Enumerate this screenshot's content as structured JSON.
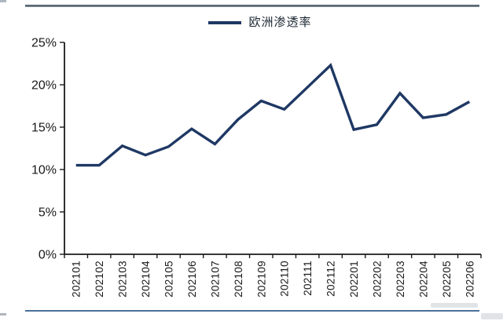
{
  "legend": {
    "label": "欧洲渗透率",
    "line_color": "#1f3864"
  },
  "chart_data": {
    "type": "line",
    "title": "",
    "xlabel": "",
    "ylabel": "",
    "categories": [
      "202101",
      "202102",
      "202103",
      "202104",
      "202105",
      "202106",
      "202107",
      "202108",
      "202109",
      "202110",
      "202111",
      "202112",
      "202201",
      "202202",
      "202203",
      "202204",
      "202205",
      "202206"
    ],
    "series": [
      {
        "name": "欧洲渗透率",
        "values": [
          10.5,
          10.5,
          12.8,
          11.7,
          12.7,
          14.8,
          13.0,
          15.9,
          18.1,
          17.1,
          19.7,
          22.3,
          14.7,
          15.3,
          19.0,
          16.1,
          16.5,
          18.0
        ]
      }
    ],
    "ylim": [
      0,
      25
    ],
    "y_tick_step": 5,
    "y_tick_labels": [
      "0%",
      "5%",
      "10%",
      "15%",
      "20%",
      "25%"
    ],
    "grid": false,
    "legend_position": "top-center",
    "x_label_rotation": -90,
    "colors": {
      "line": "#1f3864",
      "axis": "#1a1a1a",
      "top_rule": "#5f6b76",
      "bottom_rule": "#4a7199"
    }
  }
}
